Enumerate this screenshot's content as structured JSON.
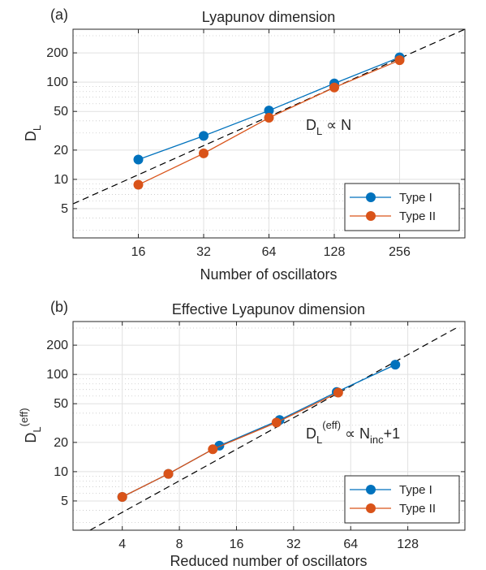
{
  "chart_data": [
    {
      "type": "line",
      "panel_label": "(a)",
      "title": "Lyapunov dimension",
      "xlabel": "Number of oscillators",
      "ylabel": {
        "main": "D",
        "sub": "L",
        "sup": ""
      },
      "xscale": "log2",
      "yscale": "log10",
      "xlim": [
        8,
        512
      ],
      "ylim": [
        2.5,
        350
      ],
      "xticks": [
        16,
        32,
        64,
        128,
        256
      ],
      "xtick_labels": [
        "16",
        "32",
        "64",
        "128",
        "256"
      ],
      "yticks": [
        5,
        10,
        20,
        50,
        100,
        200
      ],
      "ytick_labels": [
        "5",
        "10",
        "20",
        "50",
        "100",
        "200"
      ],
      "grid": true,
      "series": [
        {
          "name": "Type I",
          "color": "#0072BD",
          "x": [
            16,
            32,
            64,
            128,
            256
          ],
          "y": [
            16,
            28,
            51,
            97,
            180
          ]
        },
        {
          "name": "Type II",
          "color": "#D95319",
          "x": [
            16,
            32,
            64,
            128,
            256
          ],
          "y": [
            8.8,
            18.5,
            43,
            88,
            168
          ]
        }
      ],
      "fit_line": {
        "style": "dashed",
        "color": "#000000",
        "x": [
          8,
          512
        ],
        "y": [
          5.6,
          350
        ]
      },
      "annotation": {
        "main": "D",
        "sub": "L",
        "sup": "",
        "rest": " ∝ N",
        "rest_sub": "",
        "rest_tail": ""
      },
      "legend": {
        "placement": "bottom-right",
        "entries": [
          "Type I",
          "Type II"
        ]
      }
    },
    {
      "type": "line",
      "panel_label": "(b)",
      "title": "Effective Lyapunov dimension",
      "xlabel": "Reduced number of oscillators",
      "ylabel": {
        "main": "D",
        "sub": "L",
        "sup": "(eff)"
      },
      "xscale": "log2",
      "yscale": "log10",
      "xlim": [
        2.2,
        256
      ],
      "ylim": [
        2.5,
        350
      ],
      "xticks": [
        4,
        8,
        16,
        32,
        64,
        128
      ],
      "xtick_labels": [
        "4",
        "8",
        "16",
        "32",
        "64",
        "128"
      ],
      "yticks": [
        5,
        10,
        20,
        50,
        100,
        200
      ],
      "ytick_labels": [
        "5",
        "10",
        "20",
        "50",
        "100",
        "200"
      ],
      "grid": true,
      "series": [
        {
          "name": "Type I",
          "color": "#0072BD",
          "x": [
            4,
            7,
            13,
            27,
            54,
            110
          ],
          "y": [
            5.5,
            9.5,
            18.5,
            34,
            66,
            126
          ]
        },
        {
          "name": "Type II",
          "color": "#D95319",
          "x": [
            4,
            7,
            12,
            26,
            55
          ],
          "y": [
            5.5,
            9.5,
            17,
            32,
            65
          ]
        }
      ],
      "fit_line": {
        "style": "dashed",
        "color": "#000000",
        "x": [
          2.7,
          230
        ],
        "y": [
          2.5,
          300
        ]
      },
      "annotation": {
        "main": "D",
        "sub": "L",
        "sup": "(eff)",
        "rest": " ∝ N",
        "rest_sub": "inc",
        "rest_tail": "+1"
      },
      "legend": {
        "placement": "bottom-right",
        "entries": [
          "Type I",
          "Type II"
        ]
      }
    }
  ]
}
